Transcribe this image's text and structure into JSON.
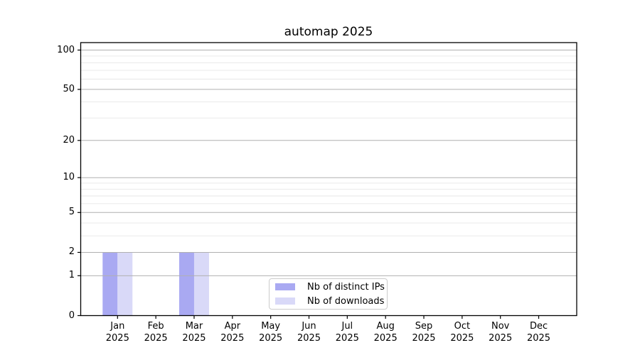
{
  "chart_data": {
    "type": "bar",
    "title": "automap 2025",
    "categories": [
      "Jan",
      "Feb",
      "Mar",
      "Apr",
      "May",
      "Jun",
      "Jul",
      "Aug",
      "Sep",
      "Oct",
      "Nov",
      "Dec"
    ],
    "category_year": "2025",
    "series": [
      {
        "name": "Nb of distinct IPs",
        "color": "#a9a9f2",
        "values": [
          2,
          0,
          2,
          0,
          0,
          0,
          0,
          0,
          0,
          0,
          0,
          0
        ]
      },
      {
        "name": "Nb of downloads",
        "color": "#d9d9f8",
        "values": [
          2,
          0,
          2,
          0,
          0,
          0,
          0,
          0,
          0,
          0,
          0,
          0
        ]
      }
    ],
    "xlabel": "",
    "ylabel": "",
    "yticks": [
      0,
      1,
      2,
      5,
      10,
      20,
      50,
      100
    ],
    "minor_yticks": [
      3,
      4,
      6,
      7,
      8,
      9,
      30,
      40,
      60,
      70,
      80,
      90
    ],
    "scale": "log1p",
    "ylim": [
      0,
      114
    ],
    "grid": true,
    "grid_major_color": "#b0b0b0",
    "grid_minor_color": "#e7e7e7",
    "axis_color": "#000000",
    "background_color": "#ffffff",
    "legend_position": "inside-bottom-center"
  }
}
